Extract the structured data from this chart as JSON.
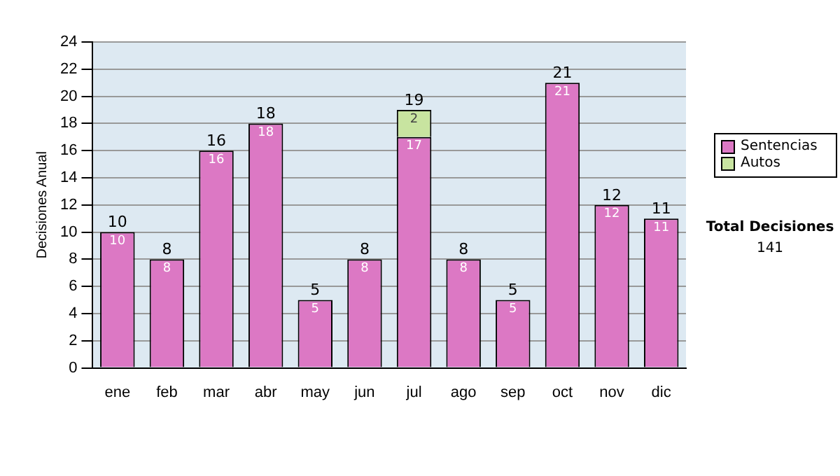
{
  "chart_data": {
    "type": "bar",
    "stacked": true,
    "ylabel": "Decisiones Anual",
    "categories": [
      "ene",
      "feb",
      "mar",
      "abr",
      "may",
      "jun",
      "jul",
      "ago",
      "sep",
      "oct",
      "nov",
      "dic"
    ],
    "series": [
      {
        "name": "Sentencias",
        "color": "#dc78c4",
        "values": [
          10,
          8,
          16,
          18,
          5,
          8,
          17,
          8,
          5,
          21,
          12,
          11
        ],
        "value_labels": [
          "10",
          "8",
          "16",
          "18",
          "5",
          "8",
          "17",
          "8",
          "5",
          "21",
          "12",
          "11"
        ]
      },
      {
        "name": "Autos",
        "color": "#c8e4a0",
        "values": [
          null,
          null,
          null,
          null,
          null,
          null,
          2,
          null,
          null,
          null,
          null,
          null
        ],
        "value_labels": [
          null,
          null,
          null,
          null,
          null,
          null,
          "2",
          null,
          null,
          null,
          null,
          null
        ]
      }
    ],
    "totals": [
      "10",
      "8",
      "16",
      "18",
      "5",
      "8",
      "19",
      "8",
      "5",
      "21",
      "12",
      "11"
    ],
    "ylim": [
      0,
      24
    ],
    "yticks": [
      0,
      2,
      4,
      6,
      8,
      10,
      12,
      14,
      16,
      18,
      20,
      22,
      24
    ],
    "grid": "y",
    "legend": "right",
    "annotations": [
      "Total Decisiones",
      "141"
    ]
  }
}
